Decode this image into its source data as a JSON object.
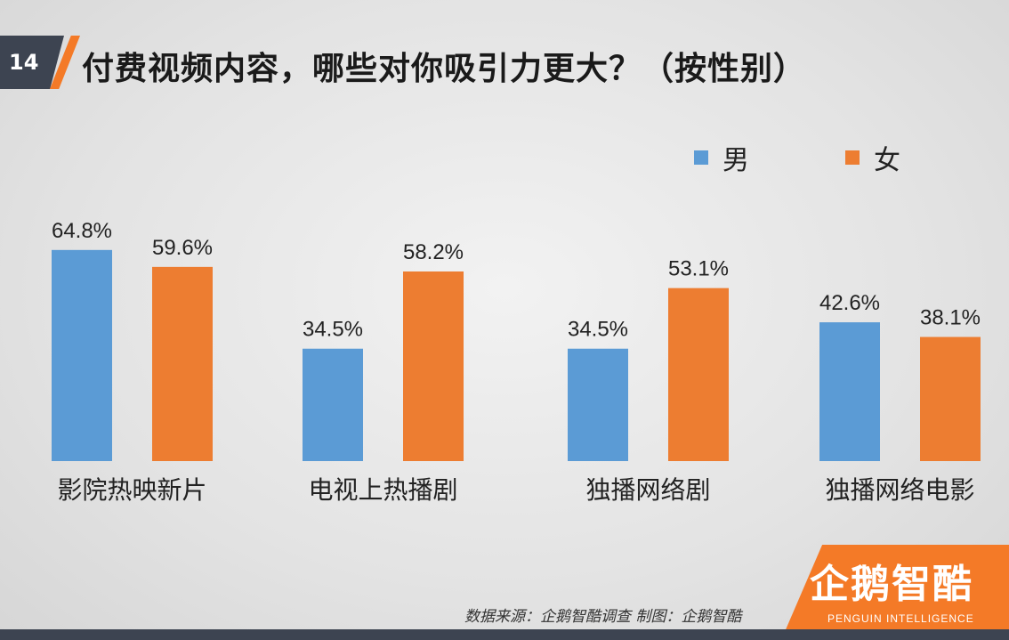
{
  "slide": {
    "number": "14",
    "title": "付费视频内容，哪些对你吸引力更大？（按性别）"
  },
  "colors": {
    "male": "#5b9bd5",
    "female": "#ed7d31",
    "accent": "#f47a27",
    "dark": "#3d4451"
  },
  "chart_data": {
    "type": "bar",
    "categories": [
      "影院热映新片",
      "电视上热播剧",
      "独播网络剧",
      "独播网络电影"
    ],
    "series": [
      {
        "name": "男",
        "values": [
          64.8,
          34.5,
          34.5,
          42.6
        ],
        "labels": [
          "64.8%",
          "34.5%",
          "34.5%",
          "42.6%"
        ]
      },
      {
        "name": "女",
        "values": [
          59.6,
          58.2,
          53.1,
          38.1
        ],
        "labels": [
          "59.6%",
          "58.2%",
          "53.1%",
          "38.1%"
        ]
      }
    ],
    "title": "付费视频内容，哪些对你吸引力更大？（按性别）",
    "xlabel": "",
    "ylabel": "",
    "ylim": [
      0,
      100
    ],
    "grid": false,
    "legend": "top-right"
  },
  "footer": {
    "source": "数据来源：企鹅智酷调查   制图：企鹅智酷",
    "logo": "企鹅智酷",
    "logo_sub": "PENGUIN INTELLIGENCE"
  }
}
